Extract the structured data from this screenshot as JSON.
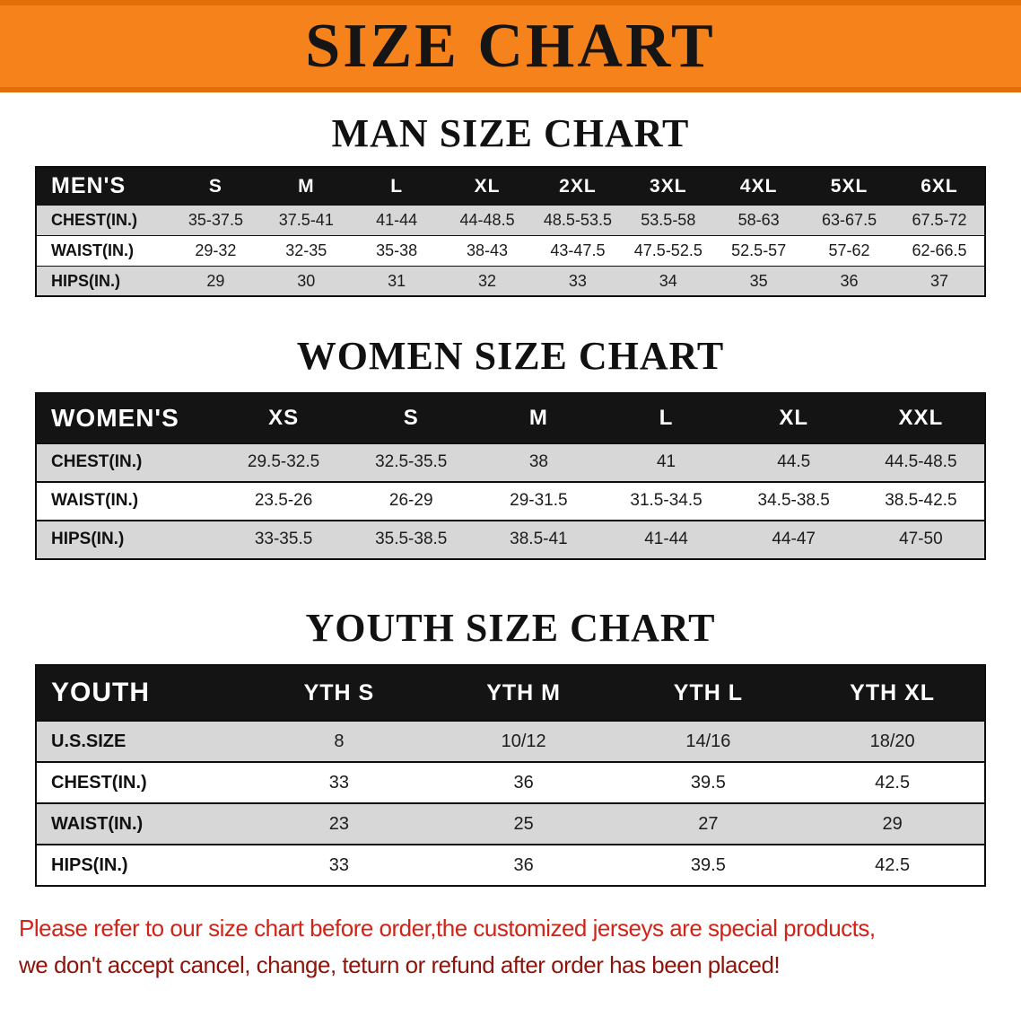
{
  "banner": {
    "title": "SIZE CHART"
  },
  "sections": [
    {
      "id": "men",
      "title": "MAN SIZE CHART",
      "header": [
        "MEN'S",
        "S",
        "M",
        "L",
        "XL",
        "2XL",
        "3XL",
        "4XL",
        "5XL",
        "6XL"
      ],
      "rows": [
        {
          "label": "CHEST(IN.)",
          "values": [
            "35-37.5",
            "37.5-41",
            "41-44",
            "44-48.5",
            "48.5-53.5",
            "53.5-58",
            "58-63",
            "63-67.5",
            "67.5-72"
          ]
        },
        {
          "label": "WAIST(IN.)",
          "values": [
            "29-32",
            "32-35",
            "35-38",
            "38-43",
            "43-47.5",
            "47.5-52.5",
            "52.5-57",
            "57-62",
            "62-66.5"
          ]
        },
        {
          "label": "HIPS(IN.)",
          "values": [
            "29",
            "30",
            "31",
            "32",
            "33",
            "34",
            "35",
            "36",
            "37"
          ]
        }
      ]
    },
    {
      "id": "women",
      "title": "WOMEN SIZE CHART",
      "header": [
        "WOMEN'S",
        "XS",
        "S",
        "M",
        "L",
        "XL",
        "XXL"
      ],
      "rows": [
        {
          "label": "CHEST(IN.)",
          "values": [
            "29.5-32.5",
            "32.5-35.5",
            "38",
            "41",
            "44.5",
            "44.5-48.5"
          ]
        },
        {
          "label": "WAIST(IN.)",
          "values": [
            "23.5-26",
            "26-29",
            "29-31.5",
            "31.5-34.5",
            "34.5-38.5",
            "38.5-42.5"
          ]
        },
        {
          "label": "HIPS(IN.)",
          "values": [
            "33-35.5",
            "35.5-38.5",
            "38.5-41",
            "41-44",
            "44-47",
            "47-50"
          ]
        }
      ]
    },
    {
      "id": "youth",
      "title": "YOUTH SIZE CHART",
      "header": [
        "YOUTH",
        "YTH S",
        "YTH M",
        "YTH L",
        "YTH XL"
      ],
      "rows": [
        {
          "label": "U.S.SIZE",
          "values": [
            "8",
            "10/12",
            "14/16",
            "18/20"
          ]
        },
        {
          "label": "CHEST(IN.)",
          "values": [
            "33",
            "36",
            "39.5",
            "42.5"
          ]
        },
        {
          "label": "WAIST(IN.)",
          "values": [
            "23",
            "25",
            "27",
            "29"
          ]
        },
        {
          "label": "HIPS(IN.)",
          "values": [
            "33",
            "36",
            "39.5",
            "42.5"
          ]
        }
      ]
    }
  ],
  "footer": {
    "lines": [
      "Please refer to our size chart before order,the customized jerseys are special products,",
      "we don't accept cancel, change, teturn or refund after order has been placed!"
    ]
  },
  "colors": {
    "banner-bg": "#f6821c",
    "banner-edge": "#e06e09",
    "header-bg": "#141414",
    "header-text": "#ffffff",
    "shaded-row": "#d7d7d7",
    "row-border": "#0e0e0e",
    "title-text": "#111111",
    "footer-line1": "#cf2418",
    "footer-line2": "#8e130a"
  }
}
